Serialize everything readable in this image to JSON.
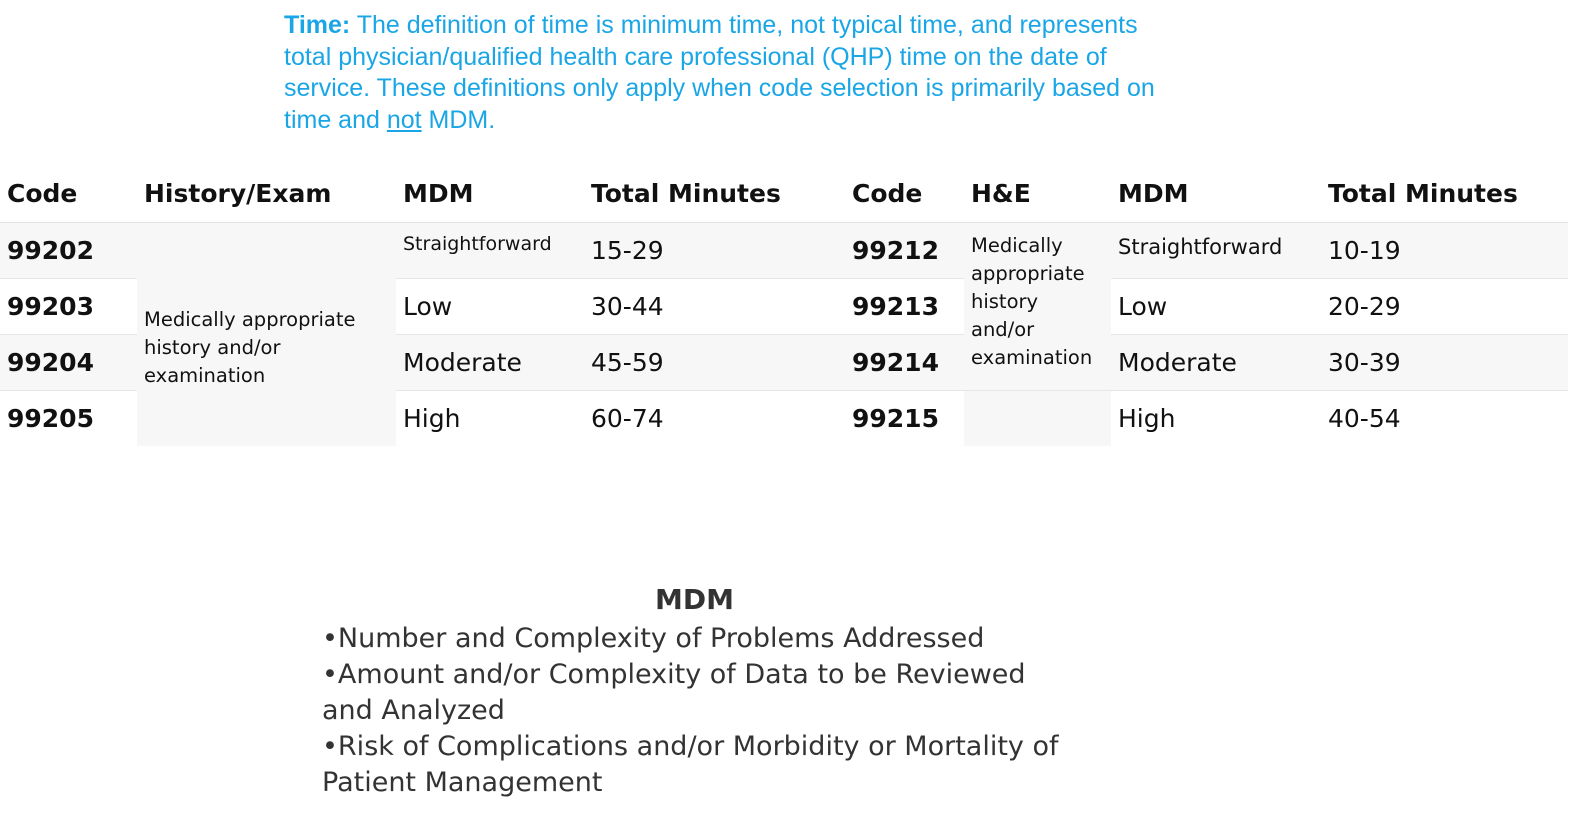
{
  "intro": {
    "lead": "Time:",
    "text_before": " The definition of time is minimum time, not typical time, and represents total physician/qualified health care professional (QHP) time on the date of service. These definitions only apply when code selection is primarily based on time and ",
    "underlined": "not",
    "text_after": " MDM."
  },
  "table": {
    "headers": [
      "Code",
      "History/Exam",
      "MDM",
      "Total Minutes",
      "Code",
      "H&E",
      "MDM",
      "Total Minutes"
    ],
    "new_patient_history": "Medically appropriate history and/or examination",
    "established_patient_history": "Medically appropriate history and/or examination",
    "rows": [
      {
        "code_new": "99202",
        "mdm_new": "Straightforward",
        "minutes_new": "15-29",
        "code_est": "99212",
        "mdm_est": "Straightforward",
        "minutes_est": "10-19"
      },
      {
        "code_new": "99203",
        "mdm_new": "Low",
        "minutes_new": "30-44",
        "code_est": "99213",
        "mdm_est": "Low",
        "minutes_est": "20-29"
      },
      {
        "code_new": "99204",
        "mdm_new": "Moderate",
        "minutes_new": "45-59",
        "code_est": "99214",
        "mdm_est": "Moderate",
        "minutes_est": "30-39"
      },
      {
        "code_new": "99205",
        "mdm_new": "High",
        "minutes_new": "60-74",
        "code_est": "99215",
        "mdm_est": "High",
        "minutes_est": "40-54"
      }
    ]
  },
  "mdm": {
    "title": "MDM",
    "items": [
      "•Number and Complexity of Problems Addressed",
      "•Amount and/or Complexity of Data to be Reviewed and Analyzed",
      "•Risk of Complications and/or Morbidity or Mortality of Patient Management"
    ]
  }
}
